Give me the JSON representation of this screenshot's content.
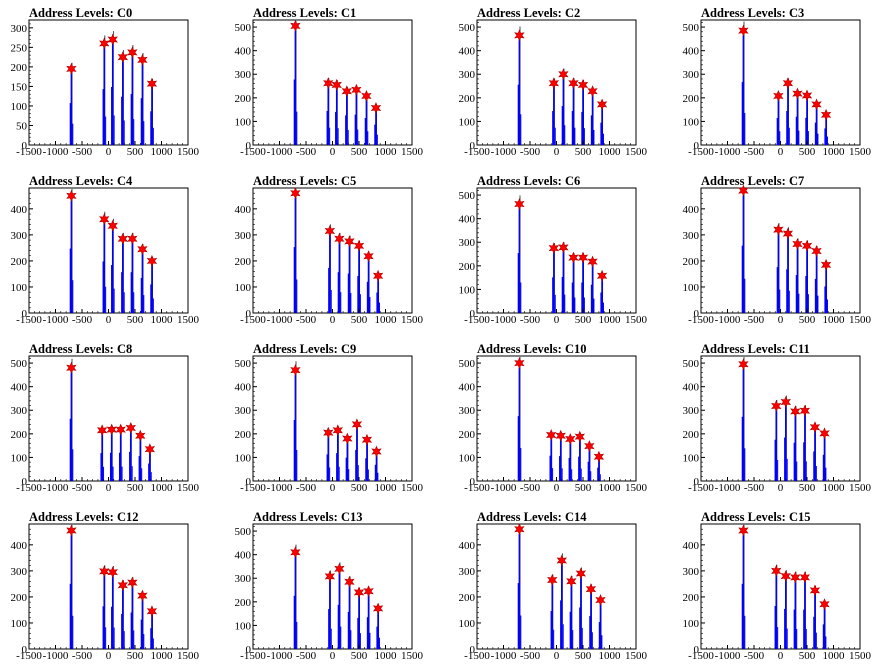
{
  "style": {
    "histogram_color": "#0000ff",
    "peak_outline_color": "#000000",
    "marker_color": "#ff0000",
    "marker_shape": "star"
  },
  "chart_data": [
    {
      "type": "bar",
      "title": "Address Levels: C0",
      "xlim": [
        -1500,
        1500
      ],
      "ylim": [
        0,
        320
      ],
      "xticks": [
        -1500,
        -1000,
        -500,
        0,
        500,
        1000,
        1500
      ],
      "yticks": [
        0,
        50,
        100,
        150,
        200,
        250,
        300
      ],
      "peaks": [
        {
          "x": -700,
          "y": 195
        },
        {
          "x": -80,
          "y": 260
        },
        {
          "x": 80,
          "y": 270
        },
        {
          "x": 270,
          "y": 225
        },
        {
          "x": 450,
          "y": 237
        },
        {
          "x": 640,
          "y": 218
        },
        {
          "x": 820,
          "y": 157
        }
      ]
    },
    {
      "type": "bar",
      "title": "Address Levels: C1",
      "xlim": [
        -1500,
        1500
      ],
      "ylim": [
        0,
        530
      ],
      "xticks": [
        -1500,
        -1000,
        -500,
        0,
        500,
        1000,
        1500
      ],
      "yticks": [
        0,
        100,
        200,
        300,
        400,
        500
      ],
      "peaks": [
        {
          "x": -700,
          "y": 505
        },
        {
          "x": -80,
          "y": 262
        },
        {
          "x": 80,
          "y": 255
        },
        {
          "x": 270,
          "y": 228
        },
        {
          "x": 450,
          "y": 234
        },
        {
          "x": 640,
          "y": 208
        },
        {
          "x": 820,
          "y": 157
        }
      ]
    },
    {
      "type": "bar",
      "title": "Address Levels: C2",
      "xlim": [
        -1500,
        1500
      ],
      "ylim": [
        0,
        530
      ],
      "xticks": [
        -1500,
        -1000,
        -500,
        0,
        500,
        1000,
        1500
      ],
      "yticks": [
        0,
        100,
        200,
        300,
        400,
        500
      ],
      "peaks": [
        {
          "x": -700,
          "y": 465
        },
        {
          "x": -50,
          "y": 262
        },
        {
          "x": 130,
          "y": 300
        },
        {
          "x": 320,
          "y": 262
        },
        {
          "x": 500,
          "y": 255
        },
        {
          "x": 680,
          "y": 228
        },
        {
          "x": 860,
          "y": 172
        }
      ]
    },
    {
      "type": "bar",
      "title": "Address Levels: C3",
      "xlim": [
        -1500,
        1500
      ],
      "ylim": [
        0,
        530
      ],
      "xticks": [
        -1500,
        -1000,
        -500,
        0,
        500,
        1000,
        1500
      ],
      "yticks": [
        0,
        100,
        200,
        300,
        400,
        500
      ],
      "peaks": [
        {
          "x": -700,
          "y": 485
        },
        {
          "x": -40,
          "y": 208
        },
        {
          "x": 140,
          "y": 262
        },
        {
          "x": 320,
          "y": 218
        },
        {
          "x": 500,
          "y": 210
        },
        {
          "x": 680,
          "y": 172
        },
        {
          "x": 860,
          "y": 128
        }
      ]
    },
    {
      "type": "bar",
      "title": "Address Levels: C4",
      "xlim": [
        -1500,
        1500
      ],
      "ylim": [
        0,
        480
      ],
      "xticks": [
        -1500,
        -1000,
        -500,
        0,
        500,
        1000,
        1500
      ],
      "yticks": [
        0,
        100,
        200,
        300,
        400
      ],
      "peaks": [
        {
          "x": -700,
          "y": 450
        },
        {
          "x": -80,
          "y": 360
        },
        {
          "x": 80,
          "y": 335
        },
        {
          "x": 270,
          "y": 285
        },
        {
          "x": 450,
          "y": 285
        },
        {
          "x": 640,
          "y": 245
        },
        {
          "x": 820,
          "y": 200
        }
      ]
    },
    {
      "type": "bar",
      "title": "Address Levels: C5",
      "xlim": [
        -1500,
        1500
      ],
      "ylim": [
        0,
        480
      ],
      "xticks": [
        -1500,
        -1000,
        -500,
        0,
        500,
        1000,
        1500
      ],
      "yticks": [
        0,
        100,
        200,
        300,
        400
      ],
      "peaks": [
        {
          "x": -700,
          "y": 460
        },
        {
          "x": -50,
          "y": 315
        },
        {
          "x": 130,
          "y": 285
        },
        {
          "x": 320,
          "y": 275
        },
        {
          "x": 500,
          "y": 258
        },
        {
          "x": 680,
          "y": 218
        },
        {
          "x": 860,
          "y": 143
        }
      ]
    },
    {
      "type": "bar",
      "title": "Address Levels: C6",
      "xlim": [
        -1500,
        1500
      ],
      "ylim": [
        0,
        530
      ],
      "xticks": [
        -1500,
        -1000,
        -500,
        0,
        500,
        1000,
        1500
      ],
      "yticks": [
        0,
        100,
        200,
        300,
        400,
        500
      ],
      "peaks": [
        {
          "x": -700,
          "y": 462
        },
        {
          "x": -50,
          "y": 275
        },
        {
          "x": 130,
          "y": 278
        },
        {
          "x": 320,
          "y": 235
        },
        {
          "x": 500,
          "y": 235
        },
        {
          "x": 680,
          "y": 218
        },
        {
          "x": 860,
          "y": 158
        }
      ]
    },
    {
      "type": "bar",
      "title": "Address Levels: C7",
      "xlim": [
        -1500,
        1500
      ],
      "ylim": [
        0,
        480
      ],
      "xticks": [
        -1500,
        -1000,
        -500,
        0,
        500,
        1000,
        1500
      ],
      "yticks": [
        0,
        100,
        200,
        300,
        400
      ],
      "peaks": [
        {
          "x": -700,
          "y": 470
        },
        {
          "x": -40,
          "y": 320
        },
        {
          "x": 140,
          "y": 305
        },
        {
          "x": 320,
          "y": 265
        },
        {
          "x": 500,
          "y": 258
        },
        {
          "x": 680,
          "y": 238
        },
        {
          "x": 860,
          "y": 185
        }
      ]
    },
    {
      "type": "bar",
      "title": "Address Levels: C8",
      "xlim": [
        -1500,
        1500
      ],
      "ylim": [
        0,
        530
      ],
      "xticks": [
        -1500,
        -1000,
        -500,
        0,
        500,
        1000,
        1500
      ],
      "yticks": [
        0,
        100,
        200,
        300,
        400,
        500
      ],
      "peaks": [
        {
          "x": -700,
          "y": 480
        },
        {
          "x": -120,
          "y": 215
        },
        {
          "x": 60,
          "y": 218
        },
        {
          "x": 230,
          "y": 218
        },
        {
          "x": 420,
          "y": 225
        },
        {
          "x": 600,
          "y": 192
        },
        {
          "x": 780,
          "y": 135
        }
      ]
    },
    {
      "type": "bar",
      "title": "Address Levels: C9",
      "xlim": [
        -1500,
        1500
      ],
      "ylim": [
        0,
        530
      ],
      "xticks": [
        -1500,
        -1000,
        -500,
        0,
        500,
        1000,
        1500
      ],
      "yticks": [
        0,
        100,
        200,
        300,
        400,
        500
      ],
      "peaks": [
        {
          "x": -700,
          "y": 470
        },
        {
          "x": -80,
          "y": 205
        },
        {
          "x": 100,
          "y": 215
        },
        {
          "x": 280,
          "y": 180
        },
        {
          "x": 460,
          "y": 240
        },
        {
          "x": 650,
          "y": 175
        },
        {
          "x": 830,
          "y": 125
        }
      ]
    },
    {
      "type": "bar",
      "title": "Address Levels: C10",
      "xlim": [
        -1500,
        1500
      ],
      "ylim": [
        0,
        530
      ],
      "xticks": [
        -1500,
        -1000,
        -500,
        0,
        500,
        1000,
        1500
      ],
      "yticks": [
        0,
        100,
        200,
        300,
        400,
        500
      ],
      "peaks": [
        {
          "x": -700,
          "y": 500
        },
        {
          "x": -100,
          "y": 195
        },
        {
          "x": 80,
          "y": 192
        },
        {
          "x": 260,
          "y": 178
        },
        {
          "x": 440,
          "y": 188
        },
        {
          "x": 620,
          "y": 148
        },
        {
          "x": 800,
          "y": 103
        }
      ]
    },
    {
      "type": "bar",
      "title": "Address Levels: C11",
      "xlim": [
        -1500,
        1500
      ],
      "ylim": [
        0,
        530
      ],
      "xticks": [
        -1500,
        -1000,
        -500,
        0,
        500,
        1000,
        1500
      ],
      "yticks": [
        0,
        100,
        200,
        300,
        400,
        500
      ],
      "peaks": [
        {
          "x": -700,
          "y": 495
        },
        {
          "x": -80,
          "y": 318
        },
        {
          "x": 100,
          "y": 335
        },
        {
          "x": 280,
          "y": 295
        },
        {
          "x": 460,
          "y": 298
        },
        {
          "x": 650,
          "y": 228
        },
        {
          "x": 830,
          "y": 202
        }
      ]
    },
    {
      "type": "bar",
      "title": "Address Levels: C12",
      "xlim": [
        -1500,
        1500
      ],
      "ylim": [
        0,
        480
      ],
      "xticks": [
        -1500,
        -1000,
        -500,
        0,
        500,
        1000,
        1500
      ],
      "yticks": [
        0,
        100,
        200,
        300,
        400
      ],
      "peaks": [
        {
          "x": -700,
          "y": 455
        },
        {
          "x": -80,
          "y": 298
        },
        {
          "x": 80,
          "y": 295
        },
        {
          "x": 270,
          "y": 245
        },
        {
          "x": 450,
          "y": 255
        },
        {
          "x": 640,
          "y": 205
        },
        {
          "x": 820,
          "y": 145
        }
      ]
    },
    {
      "type": "bar",
      "title": "Address Levels: C13",
      "xlim": [
        -1500,
        1500
      ],
      "ylim": [
        0,
        530
      ],
      "xticks": [
        -1500,
        -1000,
        -500,
        0,
        500,
        1000,
        1500
      ],
      "yticks": [
        0,
        100,
        200,
        300,
        400,
        500
      ],
      "peaks": [
        {
          "x": -700,
          "y": 410
        },
        {
          "x": -50,
          "y": 308
        },
        {
          "x": 130,
          "y": 340
        },
        {
          "x": 320,
          "y": 285
        },
        {
          "x": 500,
          "y": 240
        },
        {
          "x": 680,
          "y": 245
        },
        {
          "x": 860,
          "y": 172
        }
      ]
    },
    {
      "type": "bar",
      "title": "Address Levels: C14",
      "xlim": [
        -1500,
        1500
      ],
      "ylim": [
        0,
        480
      ],
      "xticks": [
        -1500,
        -1000,
        -500,
        0,
        500,
        1000,
        1500
      ],
      "yticks": [
        0,
        100,
        200,
        300,
        400
      ],
      "peaks": [
        {
          "x": -700,
          "y": 460
        },
        {
          "x": -80,
          "y": 265
        },
        {
          "x": 100,
          "y": 340
        },
        {
          "x": 280,
          "y": 260
        },
        {
          "x": 460,
          "y": 290
        },
        {
          "x": 650,
          "y": 230
        },
        {
          "x": 830,
          "y": 188
        }
      ]
    },
    {
      "type": "bar",
      "title": "Address Levels: C15",
      "xlim": [
        -1500,
        1500
      ],
      "ylim": [
        0,
        480
      ],
      "xticks": [
        -1500,
        -1000,
        -500,
        0,
        500,
        1000,
        1500
      ],
      "yticks": [
        0,
        100,
        200,
        300,
        400
      ],
      "peaks": [
        {
          "x": -700,
          "y": 455
        },
        {
          "x": -80,
          "y": 300
        },
        {
          "x": 100,
          "y": 280
        },
        {
          "x": 280,
          "y": 275
        },
        {
          "x": 460,
          "y": 275
        },
        {
          "x": 650,
          "y": 225
        },
        {
          "x": 830,
          "y": 172
        }
      ]
    }
  ]
}
